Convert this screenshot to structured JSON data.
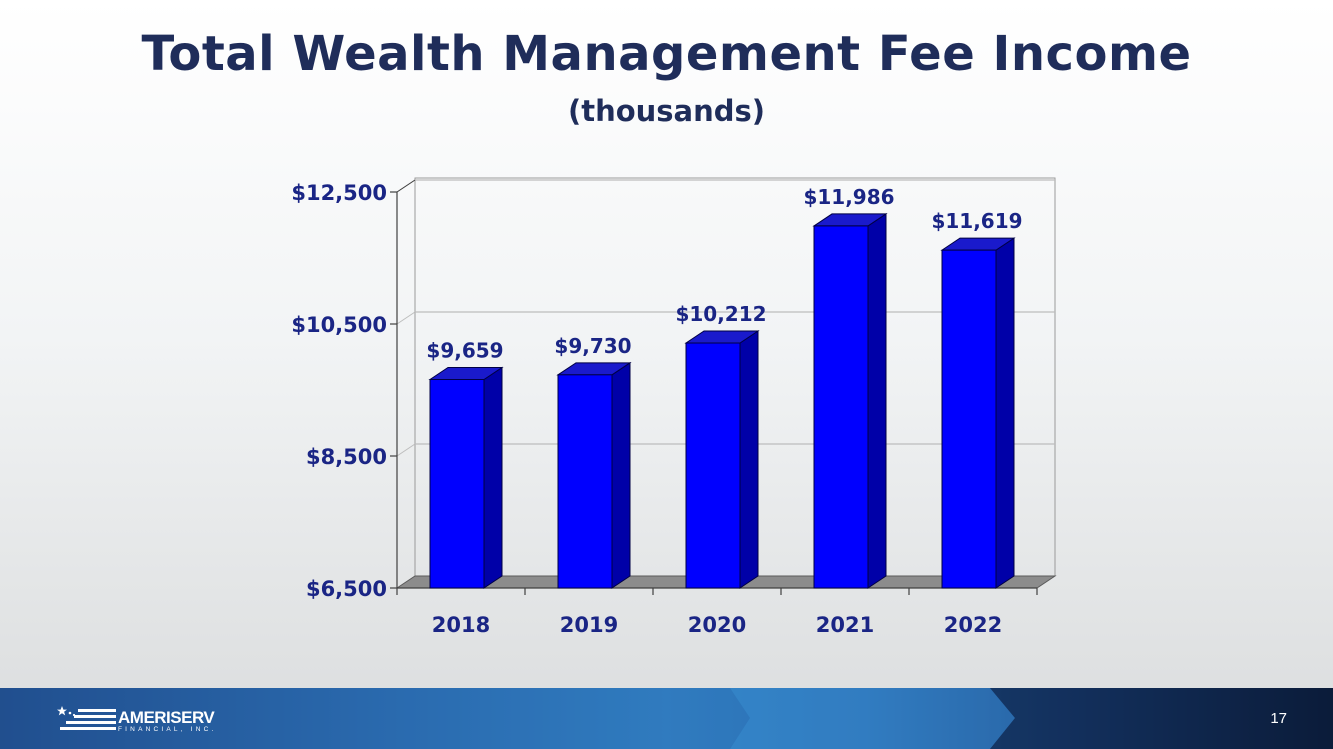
{
  "slide": {
    "title": "Total Wealth Management Fee Income",
    "subtitle": "(thousands)",
    "page_number": "17"
  },
  "footer": {
    "logo_name": "AMERISERV",
    "logo_sub": "FINANCIAL, INC.",
    "logo_icon": "flag-stars-stripes-logo"
  },
  "chart_data": {
    "type": "bar",
    "style": "3d",
    "categories": [
      "2018",
      "2019",
      "2020",
      "2021",
      "2022"
    ],
    "values": [
      9659,
      9730,
      10212,
      11986,
      11619
    ],
    "data_labels": [
      "$9,659",
      "$9,730",
      "$10,212",
      "$11,986",
      "$11,619"
    ],
    "y_ticks": [
      6500,
      8500,
      10500,
      12500
    ],
    "y_tick_labels": [
      "$6,500",
      "$8,500",
      "$10,500",
      "$12,500"
    ],
    "ylim": [
      6500,
      12500
    ],
    "grid": true,
    "bar_color": "#0000ff",
    "bar_side_color": "#0000a8",
    "bar_top_color": "#1a1acc",
    "label_color": "#1a2585",
    "title_color": "#1f2d5a"
  }
}
